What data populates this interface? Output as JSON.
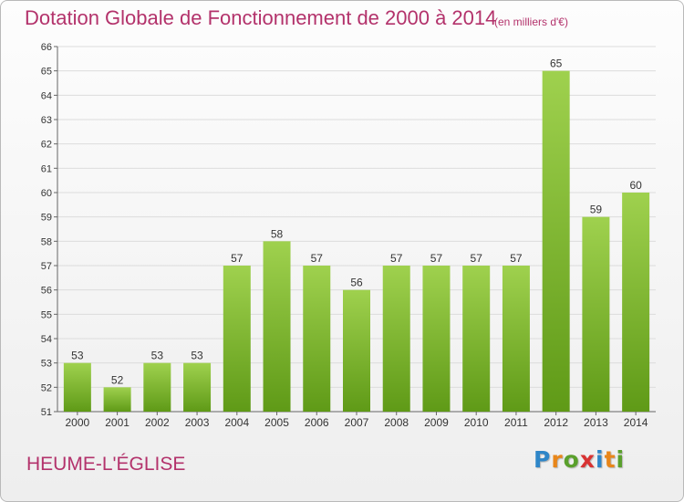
{
  "header": {
    "title": "Dotation Globale de Fonctionnement de 2000 à 2014",
    "subtitle": "(en milliers d'€)"
  },
  "commune": "HEUME-L'ÉGLISE",
  "brand": {
    "name": "Proxiti",
    "letter_colors": [
      "#2f86c8",
      "#e8861a",
      "#5aa02c",
      "#d83232",
      "#2f86c8",
      "#e8861a",
      "#5aa02c"
    ]
  },
  "colors": {
    "title": "#b3326b",
    "bar_top": "#9fd14e",
    "bar_bottom": "#5f9a17"
  },
  "chart_data": {
    "type": "bar",
    "categories": [
      "2000",
      "2001",
      "2002",
      "2003",
      "2004",
      "2005",
      "2006",
      "2007",
      "2008",
      "2009",
      "2010",
      "2011",
      "2012",
      "2013",
      "2014"
    ],
    "values": [
      53,
      52,
      53,
      53,
      57,
      58,
      57,
      56,
      57,
      57,
      57,
      57,
      65,
      59,
      60
    ],
    "ylim": [
      51,
      66
    ],
    "yticks": [
      51,
      52,
      53,
      54,
      55,
      56,
      57,
      58,
      59,
      60,
      61,
      62,
      63,
      64,
      65,
      66
    ],
    "grid": true,
    "xlabel": "",
    "ylabel": ""
  }
}
